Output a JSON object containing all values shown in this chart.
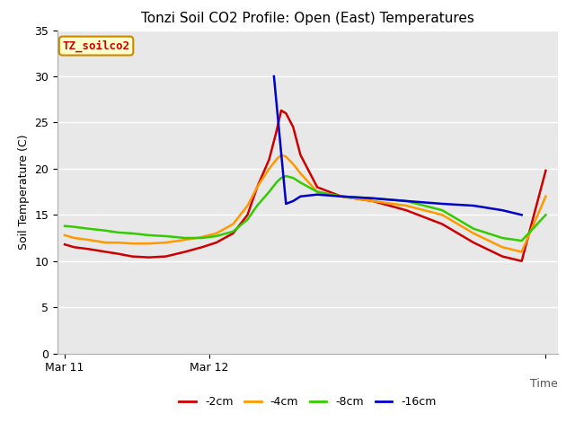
{
  "title": "Tonzi Soil CO2 Profile: Open (East) Temperatures",
  "ylabel": "Soil Temperature (C)",
  "ylim": [
    0,
    35
  ],
  "yticks": [
    0,
    5,
    10,
    15,
    20,
    25,
    30,
    35
  ],
  "fig_bg_color": "#ffffff",
  "plot_bg_color": "#e8e8e8",
  "legend_label": "TZ_soilco2",
  "legend_box_facecolor": "#ffffcc",
  "legend_box_edgecolor": "#cc8800",
  "series": {
    "-2cm": {
      "color": "#cc0000",
      "x": [
        0,
        0.04,
        0.1,
        0.17,
        0.22,
        0.28,
        0.35,
        0.42,
        0.5,
        0.57,
        0.63,
        0.7,
        0.76,
        0.8,
        0.85,
        0.88,
        0.9,
        0.92,
        0.95,
        0.98,
        1.05,
        1.15,
        1.28,
        1.42,
        1.57,
        1.7,
        1.82,
        1.9,
        2.0
      ],
      "y": [
        11.8,
        11.5,
        11.3,
        11.0,
        10.8,
        10.5,
        10.4,
        10.5,
        11.0,
        11.5,
        12.0,
        13.0,
        15.0,
        18.0,
        21.0,
        24.0,
        26.3,
        26.0,
        24.5,
        21.5,
        18.0,
        17.0,
        16.5,
        15.5,
        14.0,
        12.0,
        10.5,
        10.0,
        19.8
      ]
    },
    "-4cm": {
      "color": "#ff9900",
      "x": [
        0,
        0.04,
        0.1,
        0.17,
        0.22,
        0.28,
        0.35,
        0.42,
        0.5,
        0.57,
        0.63,
        0.7,
        0.76,
        0.8,
        0.85,
        0.88,
        0.9,
        0.92,
        0.95,
        0.98,
        1.05,
        1.15,
        1.28,
        1.42,
        1.57,
        1.7,
        1.82,
        1.9,
        2.0
      ],
      "y": [
        12.8,
        12.5,
        12.3,
        12.0,
        12.0,
        11.9,
        11.9,
        12.0,
        12.3,
        12.6,
        13.0,
        14.0,
        16.0,
        18.0,
        20.0,
        21.0,
        21.5,
        21.3,
        20.5,
        19.5,
        17.5,
        17.0,
        16.5,
        16.0,
        15.0,
        13.0,
        11.5,
        11.0,
        17.0
      ]
    },
    "-8cm": {
      "color": "#33cc00",
      "x": [
        0,
        0.04,
        0.1,
        0.17,
        0.22,
        0.28,
        0.35,
        0.42,
        0.5,
        0.57,
        0.63,
        0.7,
        0.76,
        0.8,
        0.85,
        0.88,
        0.9,
        0.92,
        0.95,
        0.98,
        1.05,
        1.15,
        1.28,
        1.42,
        1.57,
        1.7,
        1.82,
        1.9,
        2.0
      ],
      "y": [
        13.8,
        13.7,
        13.5,
        13.3,
        13.1,
        13.0,
        12.8,
        12.7,
        12.5,
        12.5,
        12.7,
        13.2,
        14.5,
        16.0,
        17.5,
        18.5,
        19.0,
        19.2,
        19.0,
        18.5,
        17.5,
        17.0,
        16.8,
        16.5,
        15.5,
        13.5,
        12.5,
        12.2,
        15.0
      ]
    },
    "-16cm": {
      "color": "#0000cc",
      "x": [
        0.87,
        0.92,
        0.95,
        0.98,
        1.05,
        1.15,
        1.28,
        1.42,
        1.57,
        1.7,
        1.82,
        1.9
      ],
      "y": [
        30.0,
        16.2,
        16.5,
        17.0,
        17.2,
        17.0,
        16.8,
        16.5,
        16.2,
        16.0,
        15.5,
        15.0
      ]
    }
  },
  "xtick_positions": [
    0,
    0.6,
    2.0
  ],
  "xtick_labels": [
    "Mar 11",
    "Mar 12",
    ""
  ],
  "title_fontsize": 11,
  "axis_fontsize": 9,
  "tick_fontsize": 9,
  "legend_fontsize": 9
}
